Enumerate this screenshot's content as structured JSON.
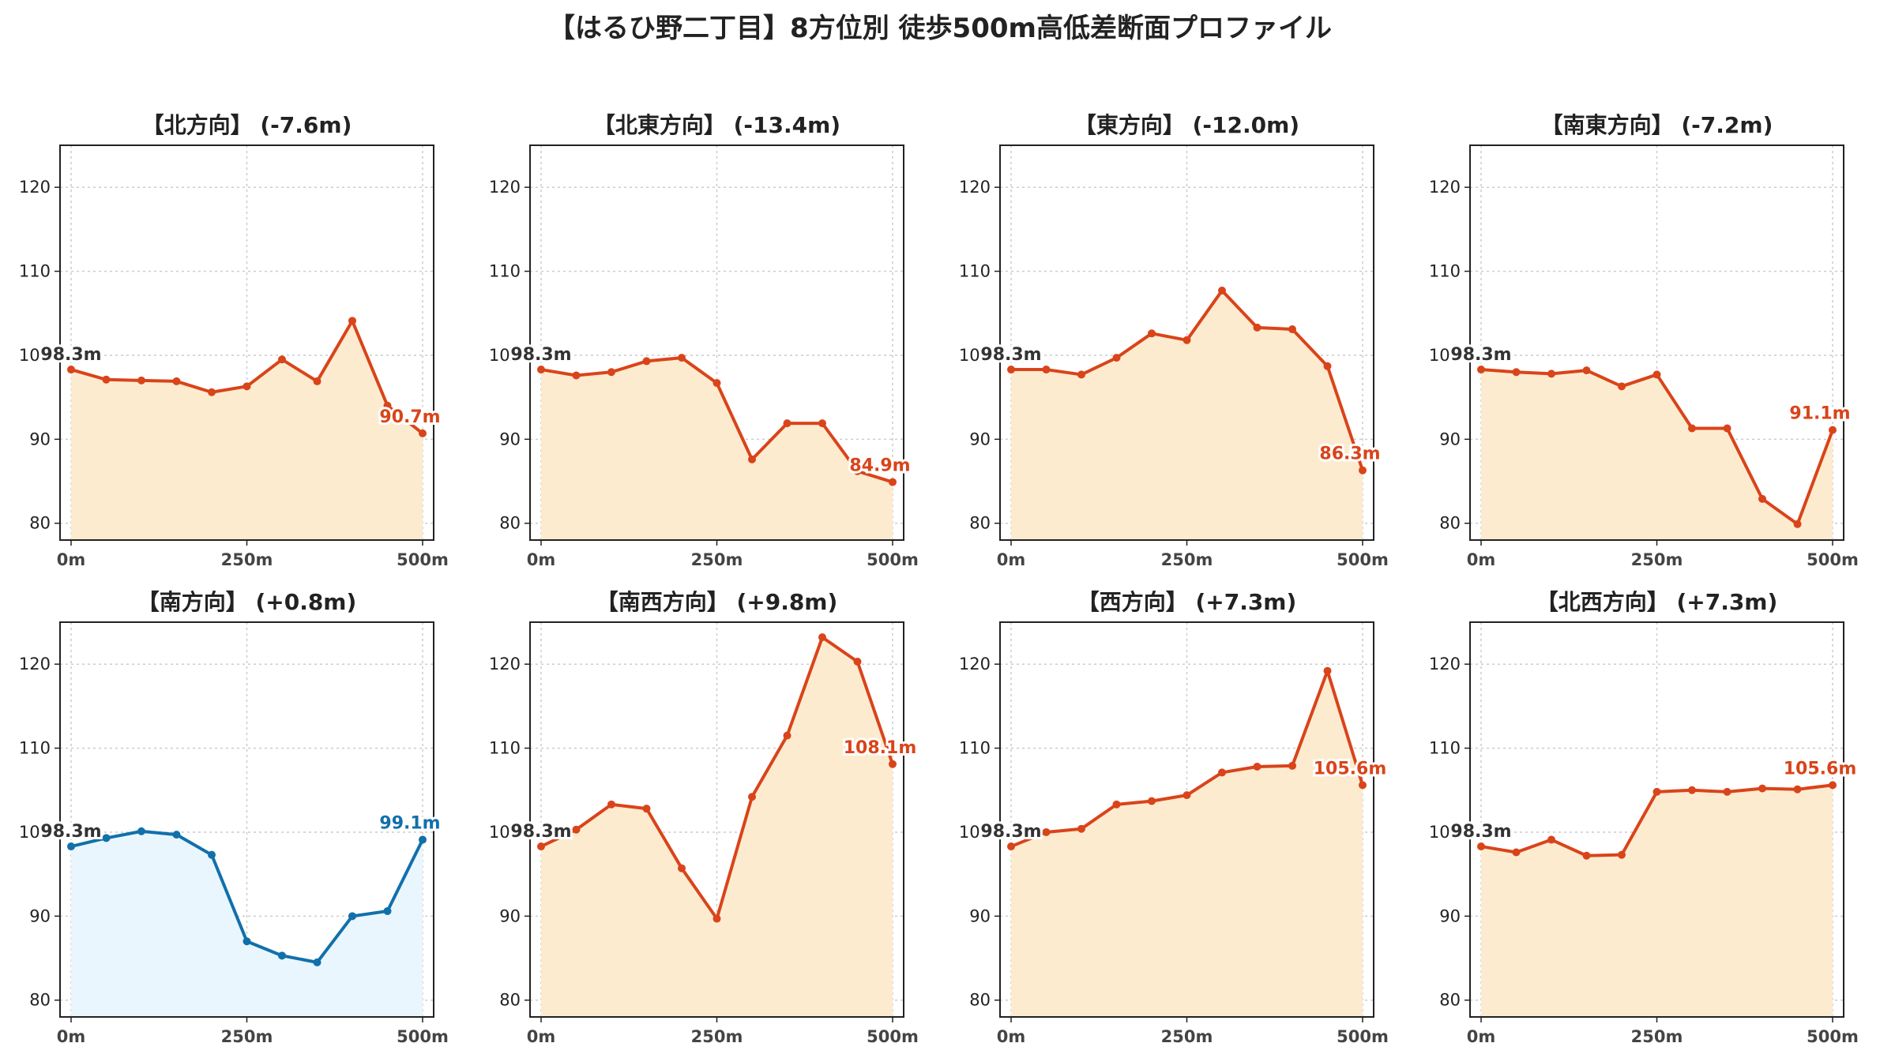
{
  "title": "【はるひ野二丁目】8方位別 徒歩500m高低差断面プロファイル",
  "chart_data": [
    {
      "type": "line",
      "title": "【北方向】 (-7.6m)",
      "x": [
        0,
        50,
        100,
        150,
        200,
        250,
        300,
        350,
        400,
        450,
        500
      ],
      "values": [
        98.3,
        97.1,
        97.0,
        96.9,
        95.6,
        96.3,
        99.5,
        96.9,
        104.1,
        94.0,
        90.7
      ],
      "start_label": "98.3m",
      "end_label": "90.7m",
      "color": "#d9441a",
      "fill": "#fdebd0",
      "xticks": [
        "0m",
        "250m",
        "500m"
      ],
      "yticks": [
        "80",
        "90",
        "100",
        "110",
        "120"
      ],
      "ylim": [
        78,
        125
      ],
      "grid": true
    },
    {
      "type": "line",
      "title": "【北東方向】 (-13.4m)",
      "x": [
        0,
        50,
        100,
        150,
        200,
        250,
        300,
        350,
        400,
        450,
        500
      ],
      "values": [
        98.3,
        97.6,
        98.0,
        99.3,
        99.7,
        96.7,
        87.6,
        91.9,
        91.9,
        86.2,
        84.9
      ],
      "start_label": "98.3m",
      "end_label": "84.9m",
      "color": "#d9441a",
      "fill": "#fdebd0",
      "xticks": [
        "0m",
        "250m",
        "500m"
      ],
      "yticks": [
        "80",
        "90",
        "100",
        "110",
        "120"
      ],
      "ylim": [
        78,
        125
      ],
      "grid": true
    },
    {
      "type": "line",
      "title": "【東方向】 (-12.0m)",
      "x": [
        0,
        50,
        100,
        150,
        200,
        250,
        300,
        350,
        400,
        450,
        500
      ],
      "values": [
        98.3,
        98.3,
        97.7,
        99.7,
        102.6,
        101.8,
        107.7,
        103.3,
        103.1,
        98.7,
        86.3
      ],
      "start_label": "98.3m",
      "end_label": "86.3m",
      "color": "#d9441a",
      "fill": "#fdebd0",
      "xticks": [
        "0m",
        "250m",
        "500m"
      ],
      "yticks": [
        "80",
        "90",
        "100",
        "110",
        "120"
      ],
      "ylim": [
        78,
        125
      ],
      "grid": true
    },
    {
      "type": "line",
      "title": "【南東方向】 (-7.2m)",
      "x": [
        0,
        50,
        100,
        150,
        200,
        250,
        300,
        350,
        400,
        450,
        500
      ],
      "values": [
        98.3,
        98.0,
        97.8,
        98.2,
        96.3,
        97.7,
        91.3,
        91.3,
        82.9,
        79.9,
        91.1
      ],
      "start_label": "98.3m",
      "end_label": "91.1m",
      "color": "#d9441a",
      "fill": "#fdebd0",
      "xticks": [
        "0m",
        "250m",
        "500m"
      ],
      "yticks": [
        "80",
        "90",
        "100",
        "110",
        "120"
      ],
      "ylim": [
        78,
        125
      ],
      "grid": true
    },
    {
      "type": "line",
      "title": "【南方向】 (+0.8m)",
      "x": [
        0,
        50,
        100,
        150,
        200,
        250,
        300,
        350,
        400,
        450,
        500
      ],
      "values": [
        98.3,
        99.3,
        100.1,
        99.7,
        97.3,
        87.0,
        85.3,
        84.5,
        90.0,
        90.6,
        99.1
      ],
      "start_label": "98.3m",
      "end_label": "99.1m",
      "color": "#1170aa",
      "fill": "#eaf6fd",
      "xticks": [
        "0m",
        "250m",
        "500m"
      ],
      "yticks": [
        "80",
        "90",
        "100",
        "110",
        "120"
      ],
      "ylim": [
        78,
        125
      ],
      "grid": true
    },
    {
      "type": "line",
      "title": "【南西方向】 (+9.8m)",
      "x": [
        0,
        50,
        100,
        150,
        200,
        250,
        300,
        350,
        400,
        450,
        500
      ],
      "values": [
        98.3,
        100.3,
        103.3,
        102.8,
        95.7,
        89.7,
        104.2,
        111.5,
        123.2,
        120.3,
        108.1
      ],
      "start_label": "98.3m",
      "end_label": "108.1m",
      "color": "#d9441a",
      "fill": "#fdebd0",
      "xticks": [
        "0m",
        "250m",
        "500m"
      ],
      "yticks": [
        "80",
        "90",
        "100",
        "110",
        "120"
      ],
      "ylim": [
        78,
        125
      ],
      "grid": true
    },
    {
      "type": "line",
      "title": "【西方向】 (+7.3m)",
      "x": [
        0,
        50,
        100,
        150,
        200,
        250,
        300,
        350,
        400,
        450,
        500
      ],
      "values": [
        98.3,
        100.0,
        100.4,
        103.3,
        103.7,
        104.4,
        107.1,
        107.8,
        107.9,
        119.2,
        105.6
      ],
      "start_label": "98.3m",
      "end_label": "105.6m",
      "color": "#d9441a",
      "fill": "#fdebd0",
      "xticks": [
        "0m",
        "250m",
        "500m"
      ],
      "yticks": [
        "80",
        "90",
        "100",
        "110",
        "120"
      ],
      "ylim": [
        78,
        125
      ],
      "grid": true
    },
    {
      "type": "line",
      "title": "【北西方向】 (+7.3m)",
      "x": [
        0,
        50,
        100,
        150,
        200,
        250,
        300,
        350,
        400,
        450,
        500
      ],
      "values": [
        98.3,
        97.6,
        99.1,
        97.2,
        97.3,
        104.8,
        105.0,
        104.8,
        105.2,
        105.1,
        105.6
      ],
      "start_label": "98.3m",
      "end_label": "105.6m",
      "color": "#d9441a",
      "fill": "#fdebd0",
      "xticks": [
        "0m",
        "250m",
        "500m"
      ],
      "yticks": [
        "80",
        "90",
        "100",
        "110",
        "120"
      ],
      "ylim": [
        78,
        125
      ],
      "grid": true
    }
  ]
}
